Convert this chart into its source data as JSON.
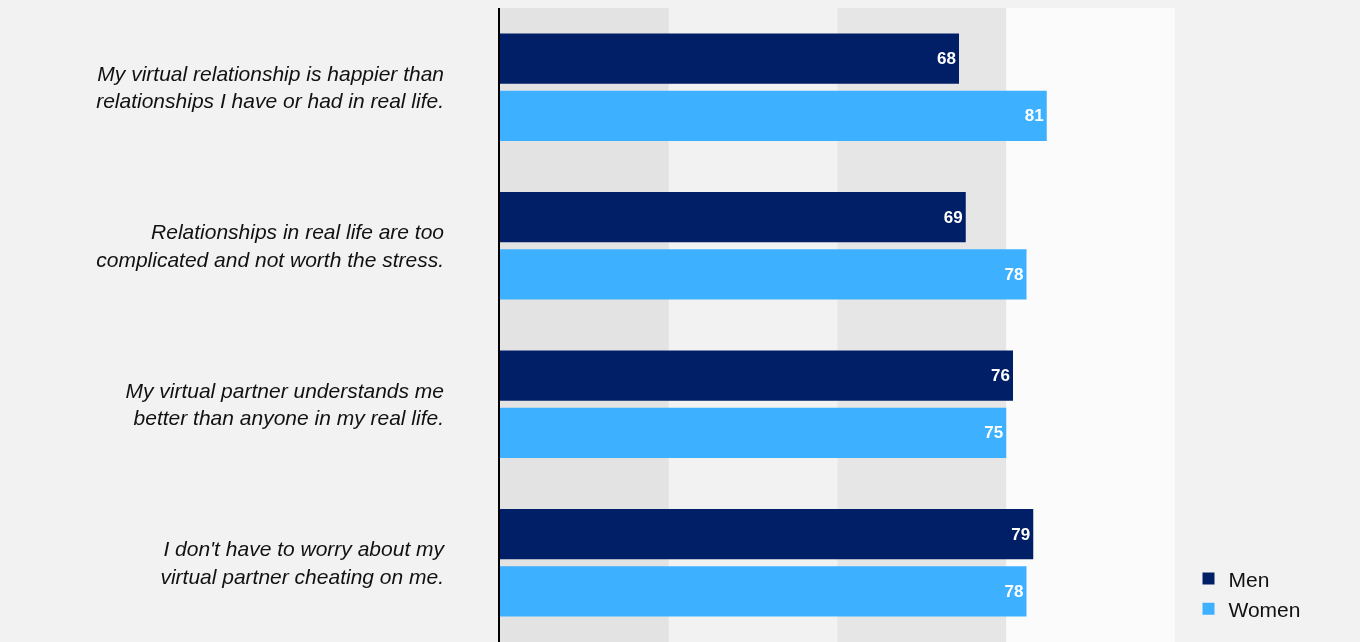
{
  "chart_data": {
    "type": "bar",
    "orientation": "horizontal",
    "categories": [
      "My virtual relationship is happier than relationships I have or had in real life.",
      "Relationships in real life are too complicated and not worth the stress.",
      "My virtual partner understands me better than anyone in my real life.",
      "I don't have to worry about my virtual partner cheating on me."
    ],
    "series": [
      {
        "name": "Men",
        "color": "#001f66",
        "values": [
          68,
          69,
          76,
          79
        ]
      },
      {
        "name": "Women",
        "color": "#3db1ff",
        "values": [
          81,
          78,
          75,
          78
        ]
      }
    ],
    "xlim": [
      0,
      100
    ],
    "bands": [
      {
        "axis": "x",
        "from": 0,
        "to": 25,
        "color": "#e3e3e3"
      },
      {
        "axis": "x",
        "from": 50,
        "to": 75,
        "color": "#e6e6e6"
      },
      {
        "axis": "x",
        "from": 75,
        "to": 100,
        "color": "#fbfbfb"
      }
    ],
    "data_labels": true,
    "legend": "bottom right",
    "tick_labels": "y"
  }
}
